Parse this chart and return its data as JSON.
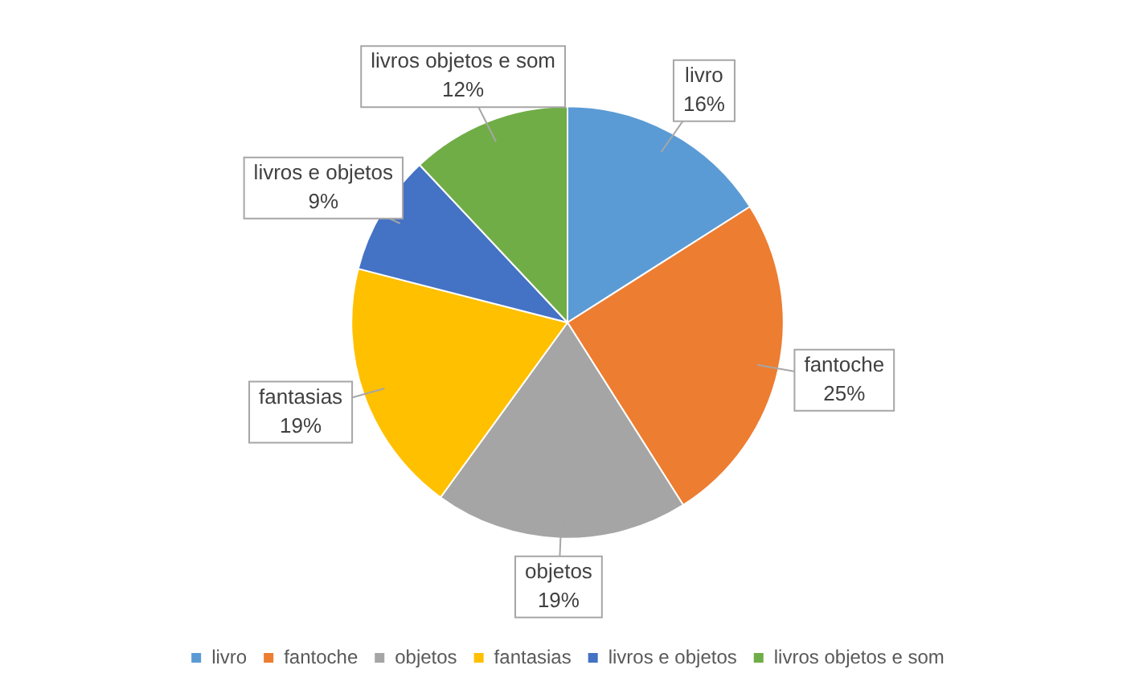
{
  "chart_data": {
    "type": "pie",
    "categories": [
      "livro",
      "fantoche",
      "objetos",
      "fantasias",
      "livros e objetos",
      "livros objetos e som"
    ],
    "values": [
      16,
      25,
      19,
      19,
      9,
      12
    ],
    "value_labels": [
      "16%",
      "25%",
      "19%",
      "19%",
      "9%",
      "12%"
    ],
    "colors": [
      "#5b9bd5",
      "#ed7d31",
      "#a5a5a5",
      "#ffc000",
      "#4472c4",
      "#70ad47"
    ],
    "legend": "bottom"
  }
}
